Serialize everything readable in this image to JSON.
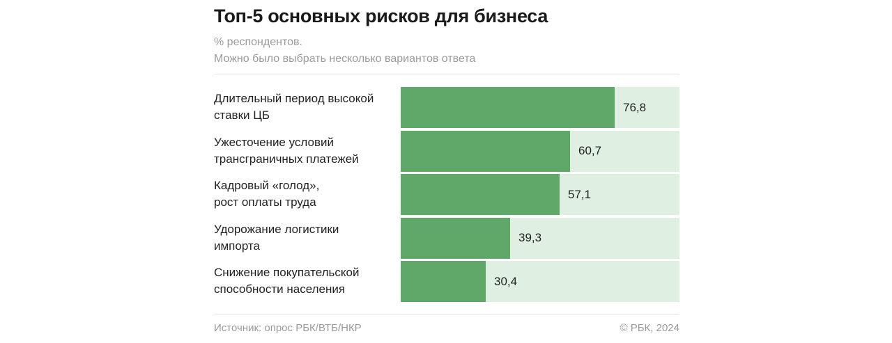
{
  "chart_data": {
    "type": "bar",
    "orientation": "horizontal",
    "title": "Топ-5 основных рисков для бизнеса",
    "subtitle_lines": [
      "% респондентов.",
      "Можно было выбрать несколько вариантов ответа"
    ],
    "categories": [
      [
        "Длительный период высокой",
        "ставки ЦБ"
      ],
      [
        "Ужесточение условий",
        "трансграничных платежей"
      ],
      [
        "Кадровый «голод»,",
        "рост оплаты труда"
      ],
      [
        "Удорожание логистики",
        "импорта"
      ],
      [
        "Снижение покупательской",
        "способности населения"
      ]
    ],
    "values": [
      76.8,
      60.7,
      57.1,
      39.3,
      30.4
    ],
    "value_labels": [
      "76,8",
      "60,7",
      "57,1",
      "39,3",
      "30,4"
    ],
    "xlim": [
      0,
      100
    ],
    "grid": false,
    "legend": "none",
    "colors": {
      "bar": "#5fa86a",
      "track": "#dff0e3"
    }
  },
  "footer": {
    "source": "Источник: опрос РБК/ВТБ/НКР",
    "copyright": "© РБК, 2024"
  }
}
